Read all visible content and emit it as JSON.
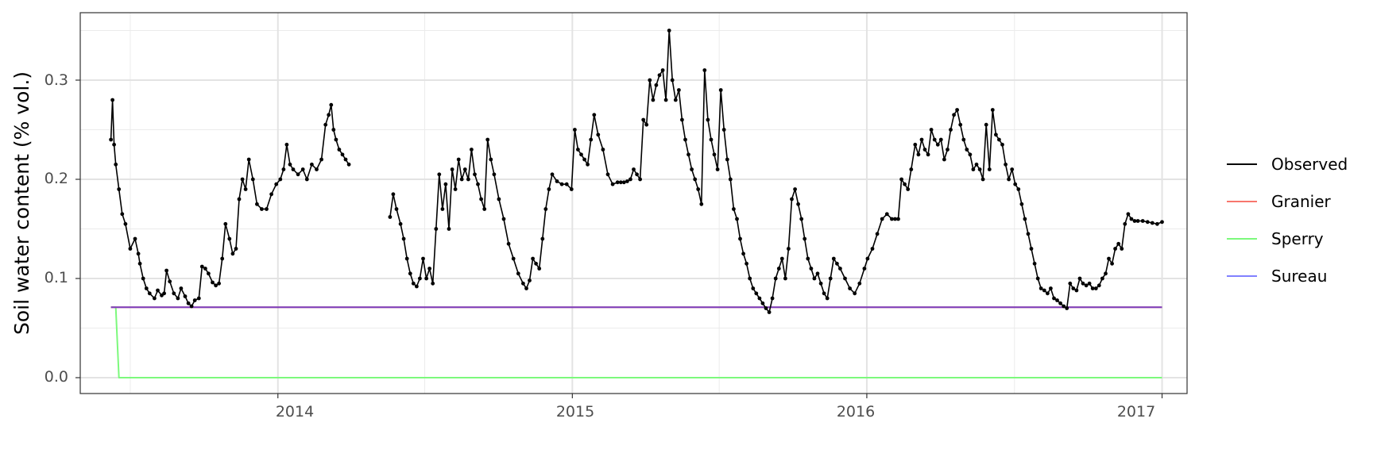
{
  "chart_data": {
    "type": "line",
    "title": "",
    "xlabel": "",
    "ylabel": "Soil water content (% vol.)",
    "x_ticks": [
      "2014",
      "2015",
      "2016",
      "2017"
    ],
    "y_ticks": [
      "0.0",
      "0.1",
      "0.2",
      "0.3"
    ],
    "xlim": [
      "2013-05-01",
      "2017-02-01"
    ],
    "ylim": [
      -0.016,
      0.368
    ],
    "grid": true,
    "legend_position": "right",
    "series": [
      {
        "name": "Observed",
        "color": "#000000",
        "markers": true,
        "segments": [
          {
            "x": [
              "2013-06-08",
              "2013-06-10",
              "2013-06-12",
              "2013-06-14",
              "2013-06-18",
              "2013-06-22",
              "2013-06-26",
              "2013-07-02",
              "2013-07-08",
              "2013-07-12",
              "2013-07-14",
              "2013-07-18",
              "2013-07-22",
              "2013-07-26",
              "2013-08-01",
              "2013-08-05",
              "2013-08-10",
              "2013-08-13",
              "2013-08-16",
              "2013-08-20",
              "2013-08-25",
              "2013-08-30",
              "2013-09-03",
              "2013-09-08",
              "2013-09-12",
              "2013-09-16",
              "2013-09-20",
              "2013-09-25",
              "2013-09-29",
              "2013-10-03",
              "2013-10-07",
              "2013-10-12",
              "2013-10-16",
              "2013-10-20",
              "2013-10-24",
              "2013-10-28",
              "2013-11-02",
              "2013-11-06",
              "2013-11-10",
              "2013-11-14",
              "2013-11-18",
              "2013-11-22",
              "2013-11-26",
              "2013-12-01",
              "2013-12-06",
              "2013-12-12",
              "2013-12-18",
              "2013-12-24",
              "2013-12-30",
              "2014-01-04",
              "2014-01-08",
              "2014-01-12",
              "2014-01-16",
              "2014-01-20",
              "2014-01-26",
              "2014-02-01",
              "2014-02-06",
              "2014-02-12",
              "2014-02-18",
              "2014-02-24",
              "2014-03-01",
              "2014-03-05",
              "2014-03-08",
              "2014-03-11",
              "2014-03-14",
              "2014-03-18",
              "2014-03-22",
              "2014-03-26",
              "2014-03-30"
            ],
            "y": [
              0.24,
              0.28,
              0.235,
              0.215,
              0.19,
              0.165,
              0.155,
              0.13,
              0.14,
              0.125,
              0.115,
              0.1,
              0.09,
              0.085,
              0.08,
              0.088,
              0.083,
              0.085,
              0.108,
              0.097,
              0.085,
              0.08,
              0.09,
              0.082,
              0.075,
              0.072,
              0.078,
              0.08,
              0.112,
              0.11,
              0.105,
              0.096,
              0.093,
              0.095,
              0.12,
              0.155,
              0.14,
              0.125,
              0.13,
              0.18,
              0.2,
              0.19,
              0.22,
              0.2,
              0.175,
              0.17,
              0.17,
              0.185,
              0.195,
              0.2,
              0.21,
              0.235,
              0.215,
              0.21,
              0.205,
              0.21,
              0.2,
              0.215,
              0.21,
              0.22,
              0.255,
              0.265,
              0.275,
              0.25,
              0.24,
              0.23,
              0.225,
              0.22,
              0.215
            ]
          },
          {
            "x": [
              "2014-05-20",
              "2014-05-24",
              "2014-05-28",
              "2014-06-02",
              "2014-06-06",
              "2014-06-10",
              "2014-06-14",
              "2014-06-18",
              "2014-06-22",
              "2014-06-26",
              "2014-06-30",
              "2014-07-04",
              "2014-07-08",
              "2014-07-12",
              "2014-07-16",
              "2014-07-20",
              "2014-07-24",
              "2014-07-28",
              "2014-08-01",
              "2014-08-05",
              "2014-08-09",
              "2014-08-13",
              "2014-08-17",
              "2014-08-21",
              "2014-08-25",
              "2014-08-29",
              "2014-09-02",
              "2014-09-06",
              "2014-09-10",
              "2014-09-14",
              "2014-09-18",
              "2014-09-22",
              "2014-09-26",
              "2014-10-02",
              "2014-10-08",
              "2014-10-14",
              "2014-10-20",
              "2014-10-26",
              "2014-11-01",
              "2014-11-05",
              "2014-11-09",
              "2014-11-13",
              "2014-11-17",
              "2014-11-21",
              "2014-11-25",
              "2014-11-29",
              "2014-12-03",
              "2014-12-07",
              "2014-12-13",
              "2014-12-19",
              "2014-12-25",
              "2014-12-31",
              "2015-01-04",
              "2015-01-08",
              "2015-01-12",
              "2015-01-16",
              "2015-01-20",
              "2015-01-24",
              "2015-01-28",
              "2015-02-02",
              "2015-02-08",
              "2015-02-14",
              "2015-02-20",
              "2015-02-26",
              "2015-03-02",
              "2015-03-06",
              "2015-03-10",
              "2015-03-14",
              "2015-03-18",
              "2015-03-22",
              "2015-03-26",
              "2015-03-30",
              "2015-04-03",
              "2015-04-07",
              "2015-04-11",
              "2015-04-15",
              "2015-04-19",
              "2015-04-23",
              "2015-04-27",
              "2015-05-01",
              "2015-05-05",
              "2015-05-09",
              "2015-05-13",
              "2015-05-17",
              "2015-05-21",
              "2015-05-25",
              "2015-05-29",
              "2015-06-02",
              "2015-06-06",
              "2015-06-10",
              "2015-06-14",
              "2015-06-18",
              "2015-06-22",
              "2015-06-26",
              "2015-06-30",
              "2015-07-04",
              "2015-07-08",
              "2015-07-12",
              "2015-07-16",
              "2015-07-20",
              "2015-07-24",
              "2015-07-28",
              "2015-08-01",
              "2015-08-05",
              "2015-08-09",
              "2015-08-13",
              "2015-08-17",
              "2015-08-21",
              "2015-08-25",
              "2015-08-29",
              "2015-09-02",
              "2015-09-06",
              "2015-09-10",
              "2015-09-14",
              "2015-09-18",
              "2015-09-22",
              "2015-09-26",
              "2015-09-30",
              "2015-10-04",
              "2015-10-08",
              "2015-10-12",
              "2015-10-16",
              "2015-10-20",
              "2015-10-24",
              "2015-10-28",
              "2015-11-01",
              "2015-11-05",
              "2015-11-09",
              "2015-11-13",
              "2015-11-17",
              "2015-11-21",
              "2015-11-25",
              "2015-11-29",
              "2015-12-05",
              "2015-12-11",
              "2015-12-17",
              "2015-12-23",
              "2015-12-29",
              "2016-01-02",
              "2016-01-08",
              "2016-01-14",
              "2016-01-20",
              "2016-01-26",
              "2016-02-01",
              "2016-02-05",
              "2016-02-09",
              "2016-02-13",
              "2016-02-17",
              "2016-02-21",
              "2016-02-25",
              "2016-03-01",
              "2016-03-05",
              "2016-03-09",
              "2016-03-13",
              "2016-03-17",
              "2016-03-21",
              "2016-03-25",
              "2016-03-29",
              "2016-04-02",
              "2016-04-06",
              "2016-04-10",
              "2016-04-14",
              "2016-04-18",
              "2016-04-22",
              "2016-04-26",
              "2016-04-30",
              "2016-05-04",
              "2016-05-08",
              "2016-05-12",
              "2016-05-16",
              "2016-05-20",
              "2016-05-24",
              "2016-05-28",
              "2016-06-01",
              "2016-06-05",
              "2016-06-09",
              "2016-06-13",
              "2016-06-17",
              "2016-06-21",
              "2016-06-25",
              "2016-06-29",
              "2016-07-03",
              "2016-07-07",
              "2016-07-11",
              "2016-07-15",
              "2016-07-19",
              "2016-07-23",
              "2016-07-27",
              "2016-07-31",
              "2016-08-04",
              "2016-08-08",
              "2016-08-12",
              "2016-08-16",
              "2016-08-20",
              "2016-08-24",
              "2016-08-28",
              "2016-09-01",
              "2016-09-05",
              "2016-09-09",
              "2016-09-13",
              "2016-09-17",
              "2016-09-21",
              "2016-09-25",
              "2016-09-29",
              "2016-10-03",
              "2016-10-07",
              "2016-10-11",
              "2016-10-15",
              "2016-10-19",
              "2016-10-23",
              "2016-10-27",
              "2016-10-31",
              "2016-11-04",
              "2016-11-08",
              "2016-11-12",
              "2016-11-16",
              "2016-11-20",
              "2016-11-24",
              "2016-11-28",
              "2016-12-02",
              "2016-12-08",
              "2016-12-14",
              "2016-12-20",
              "2016-12-26",
              "2017-01-01"
            ],
            "y": [
              0.162,
              0.185,
              0.17,
              0.155,
              0.14,
              0.12,
              0.105,
              0.095,
              0.092,
              0.1,
              0.12,
              0.1,
              0.11,
              0.095,
              0.15,
              0.205,
              0.17,
              0.195,
              0.15,
              0.21,
              0.19,
              0.22,
              0.2,
              0.21,
              0.2,
              0.23,
              0.205,
              0.195,
              0.18,
              0.17,
              0.24,
              0.22,
              0.205,
              0.18,
              0.16,
              0.135,
              0.12,
              0.105,
              0.095,
              0.09,
              0.098,
              0.12,
              0.115,
              0.11,
              0.14,
              0.17,
              0.19,
              0.205,
              0.198,
              0.195,
              0.195,
              0.19,
              0.25,
              0.23,
              0.225,
              0.22,
              0.215,
              0.24,
              0.265,
              0.245,
              0.23,
              0.205,
              0.195,
              0.197,
              0.197,
              0.197,
              0.198,
              0.2,
              0.21,
              0.205,
              0.2,
              0.26,
              0.255,
              0.3,
              0.28,
              0.295,
              0.305,
              0.31,
              0.28,
              0.35,
              0.3,
              0.28,
              0.29,
              0.26,
              0.24,
              0.225,
              0.21,
              0.2,
              0.19,
              0.175,
              0.31,
              0.26,
              0.24,
              0.225,
              0.21,
              0.29,
              0.25,
              0.22,
              0.2,
              0.17,
              0.16,
              0.14,
              0.125,
              0.115,
              0.1,
              0.09,
              0.085,
              0.08,
              0.075,
              0.07,
              0.066,
              0.08,
              0.1,
              0.11,
              0.12,
              0.1,
              0.13,
              0.18,
              0.19,
              0.175,
              0.16,
              0.14,
              0.12,
              0.11,
              0.1,
              0.105,
              0.095,
              0.085,
              0.08,
              0.1,
              0.12,
              0.115,
              0.11,
              0.1,
              0.09,
              0.085,
              0.095,
              0.11,
              0.12,
              0.13,
              0.145,
              0.16,
              0.165,
              0.16,
              0.16,
              0.16,
              0.2,
              0.195,
              0.19,
              0.21,
              0.235,
              0.225,
              0.24,
              0.23,
              0.225,
              0.25,
              0.24,
              0.235,
              0.24,
              0.22,
              0.23,
              0.25,
              0.265,
              0.27,
              0.255,
              0.24,
              0.23,
              0.225,
              0.21,
              0.215,
              0.21,
              0.2,
              0.255,
              0.21,
              0.27,
              0.245,
              0.24,
              0.235,
              0.215,
              0.2,
              0.21,
              0.195,
              0.19,
              0.175,
              0.16,
              0.145,
              0.13,
              0.115,
              0.1,
              0.09,
              0.088,
              0.085,
              0.09,
              0.08,
              0.078,
              0.075,
              0.072,
              0.07,
              0.095,
              0.09,
              0.088,
              0.1,
              0.095,
              0.093,
              0.095,
              0.09,
              0.09,
              0.093,
              0.1,
              0.105,
              0.12,
              0.115,
              0.13,
              0.135,
              0.13,
              0.155,
              0.165,
              0.16,
              0.158,
              0.158,
              0.158,
              0.157,
              0.156,
              0.155,
              0.157
            ]
          }
        ]
      },
      {
        "name": "Granier",
        "color": "#f8766d",
        "x": [
          "2013-06-08",
          "2017-01-01"
        ],
        "y": [
          0.071,
          0.071
        ]
      },
      {
        "name": "Sperry",
        "color": "#7cf97c",
        "x": [
          "2013-06-08",
          "2013-06-14",
          "2013-06-18",
          "2017-01-01"
        ],
        "y": [
          0.071,
          0.071,
          0.0,
          0.0
        ]
      },
      {
        "name": "Sureau",
        "color": "#7b3fbf",
        "legend_color": "#8080ff",
        "x": [
          "2013-06-08",
          "2017-01-01"
        ],
        "y": [
          0.071,
          0.071
        ]
      }
    ]
  }
}
